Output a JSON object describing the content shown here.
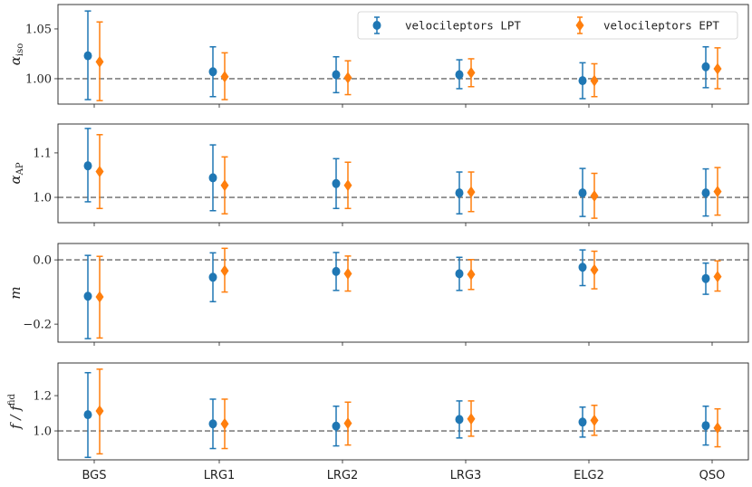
{
  "chart_data": {
    "type": "scatter",
    "categories": [
      "BGS",
      "LRG1",
      "LRG2",
      "LRG3",
      "ELG2",
      "QSO"
    ],
    "legend": {
      "placement": "top-right",
      "entries": [
        "velocileptors LPT",
        "velocileptors EPT"
      ]
    },
    "colors": {
      "LPT": "#1f77b4",
      "EPT": "#ff7f0e",
      "reference": "#808080"
    },
    "panels": [
      {
        "ylabel": {
          "main": "α",
          "sub": "iso",
          "sup": ""
        },
        "ylim": [
          0.9745,
          1.0745
        ],
        "reference": 1.0,
        "yticks": [
          {
            "v": 1.0,
            "label": "1.00"
          },
          {
            "v": 1.05,
            "label": "1.05"
          }
        ],
        "series": [
          {
            "name": "velocileptors LPT",
            "values": [
              1.023,
              1.007,
              1.004,
              1.004,
              0.998,
              1.012
            ],
            "lower": [
              0.979,
              0.982,
              0.986,
              0.99,
              0.98,
              0.991
            ],
            "upper": [
              1.068,
              1.032,
              1.022,
              1.019,
              1.016,
              1.032
            ]
          },
          {
            "name": "velocileptors EPT",
            "values": [
              1.017,
              1.002,
              1.001,
              1.006,
              0.998,
              1.01
            ],
            "lower": [
              0.978,
              0.979,
              0.984,
              0.992,
              0.982,
              0.99
            ],
            "upper": [
              1.057,
              1.026,
              1.018,
              1.02,
              1.015,
              1.031
            ]
          }
        ]
      },
      {
        "ylabel": {
          "main": "α",
          "sub": "AP",
          "sup": ""
        },
        "ylim": [
          0.943,
          1.165
        ],
        "reference": 1.0,
        "yticks": [
          {
            "v": 1.0,
            "label": "1.0"
          },
          {
            "v": 1.1,
            "label": "1.1"
          }
        ],
        "series": [
          {
            "name": "velocileptors LPT",
            "values": [
              1.071,
              1.044,
              1.031,
              1.01,
              1.01,
              1.01
            ],
            "lower": [
              0.99,
              0.97,
              0.975,
              0.963,
              0.957,
              0.958
            ],
            "upper": [
              1.155,
              1.118,
              1.087,
              1.057,
              1.065,
              1.064
            ]
          },
          {
            "name": "velocileptors EPT",
            "values": [
              1.058,
              1.027,
              1.027,
              1.012,
              1.003,
              1.013
            ],
            "lower": [
              0.975,
              0.963,
              0.975,
              0.968,
              0.953,
              0.96
            ],
            "upper": [
              1.141,
              1.091,
              1.079,
              1.057,
              1.054,
              1.067
            ]
          }
        ]
      },
      {
        "ylabel": {
          "main": "m",
          "sub": "",
          "sup": ""
        },
        "ylim": [
          -0.256,
          0.051
        ],
        "reference": 0.0,
        "yticks": [
          {
            "v": -0.2,
            "label": "−0.2"
          },
          {
            "v": 0.0,
            "label": "0.0"
          }
        ],
        "series": [
          {
            "name": "velocileptors LPT",
            "values": [
              -0.113,
              -0.054,
              -0.036,
              -0.043,
              -0.023,
              -0.058
            ],
            "lower": [
              -0.245,
              -0.13,
              -0.095,
              -0.095,
              -0.08,
              -0.107
            ],
            "upper": [
              0.014,
              0.022,
              0.023,
              0.008,
              0.031,
              -0.01
            ]
          },
          {
            "name": "velocileptors EPT",
            "values": [
              -0.115,
              -0.034,
              -0.043,
              -0.045,
              -0.031,
              -0.052
            ],
            "lower": [
              -0.243,
              -0.1,
              -0.097,
              -0.092,
              -0.09,
              -0.097
            ],
            "upper": [
              0.011,
              0.036,
              0.012,
              0.001,
              0.027,
              -0.003
            ]
          }
        ]
      },
      {
        "ylabel": {
          "main": "f / f",
          "sub": "",
          "sup": "fid"
        },
        "ylim": [
          0.836,
          1.385
        ],
        "reference": 1.0,
        "yticks": [
          {
            "v": 1.0,
            "label": "1.0"
          },
          {
            "v": 1.2,
            "label": "1.2"
          }
        ],
        "series": [
          {
            "name": "velocileptors LPT",
            "values": [
              1.092,
              1.04,
              1.027,
              1.065,
              1.05,
              1.03
            ],
            "lower": [
              0.85,
              0.9,
              0.915,
              0.96,
              0.965,
              0.92
            ],
            "upper": [
              1.33,
              1.18,
              1.14,
              1.17,
              1.135,
              1.14
            ]
          },
          {
            "name": "velocileptors EPT",
            "values": [
              1.113,
              1.04,
              1.043,
              1.068,
              1.06,
              1.017
            ],
            "lower": [
              0.87,
              0.9,
              0.92,
              0.97,
              0.975,
              0.91
            ],
            "upper": [
              1.35,
              1.18,
              1.163,
              1.17,
              1.145,
              1.125
            ]
          }
        ]
      }
    ]
  }
}
